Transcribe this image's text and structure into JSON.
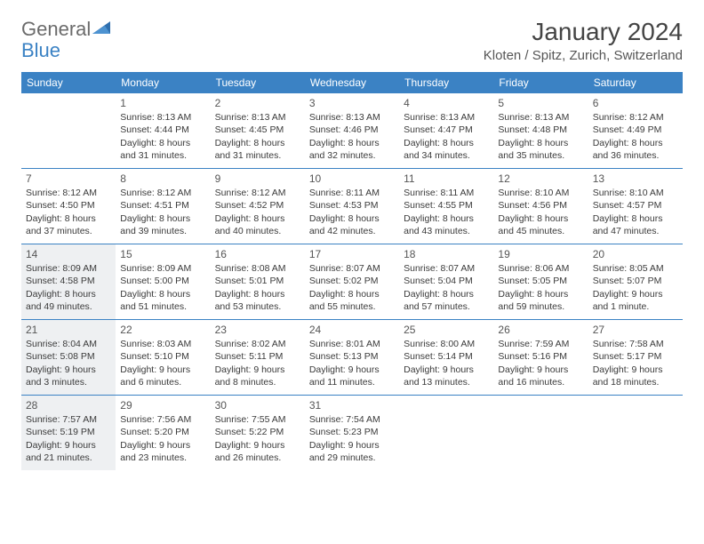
{
  "logo": {
    "general": "General",
    "blue": "Blue"
  },
  "title": "January 2024",
  "location": "Kloten / Spitz, Zurich, Switzerland",
  "colors": {
    "header_bg": "#3b82c4",
    "header_text": "#ffffff",
    "shade_bg": "#eef0f2",
    "divider": "#3b82c4",
    "body_text": "#3a3a3a"
  },
  "dayHeaders": [
    "Sunday",
    "Monday",
    "Tuesday",
    "Wednesday",
    "Thursday",
    "Friday",
    "Saturday"
  ],
  "weeks": [
    [
      {
        "num": "",
        "sunrise": "",
        "sunset": "",
        "daylight": "",
        "shade": false
      },
      {
        "num": "1",
        "sunrise": "Sunrise: 8:13 AM",
        "sunset": "Sunset: 4:44 PM",
        "daylight": "Daylight: 8 hours and 31 minutes.",
        "shade": false
      },
      {
        "num": "2",
        "sunrise": "Sunrise: 8:13 AM",
        "sunset": "Sunset: 4:45 PM",
        "daylight": "Daylight: 8 hours and 31 minutes.",
        "shade": false
      },
      {
        "num": "3",
        "sunrise": "Sunrise: 8:13 AM",
        "sunset": "Sunset: 4:46 PM",
        "daylight": "Daylight: 8 hours and 32 minutes.",
        "shade": false
      },
      {
        "num": "4",
        "sunrise": "Sunrise: 8:13 AM",
        "sunset": "Sunset: 4:47 PM",
        "daylight": "Daylight: 8 hours and 34 minutes.",
        "shade": false
      },
      {
        "num": "5",
        "sunrise": "Sunrise: 8:13 AM",
        "sunset": "Sunset: 4:48 PM",
        "daylight": "Daylight: 8 hours and 35 minutes.",
        "shade": false
      },
      {
        "num": "6",
        "sunrise": "Sunrise: 8:12 AM",
        "sunset": "Sunset: 4:49 PM",
        "daylight": "Daylight: 8 hours and 36 minutes.",
        "shade": false
      }
    ],
    [
      {
        "num": "7",
        "sunrise": "Sunrise: 8:12 AM",
        "sunset": "Sunset: 4:50 PM",
        "daylight": "Daylight: 8 hours and 37 minutes.",
        "shade": false
      },
      {
        "num": "8",
        "sunrise": "Sunrise: 8:12 AM",
        "sunset": "Sunset: 4:51 PM",
        "daylight": "Daylight: 8 hours and 39 minutes.",
        "shade": false
      },
      {
        "num": "9",
        "sunrise": "Sunrise: 8:12 AM",
        "sunset": "Sunset: 4:52 PM",
        "daylight": "Daylight: 8 hours and 40 minutes.",
        "shade": false
      },
      {
        "num": "10",
        "sunrise": "Sunrise: 8:11 AM",
        "sunset": "Sunset: 4:53 PM",
        "daylight": "Daylight: 8 hours and 42 minutes.",
        "shade": false
      },
      {
        "num": "11",
        "sunrise": "Sunrise: 8:11 AM",
        "sunset": "Sunset: 4:55 PM",
        "daylight": "Daylight: 8 hours and 43 minutes.",
        "shade": false
      },
      {
        "num": "12",
        "sunrise": "Sunrise: 8:10 AM",
        "sunset": "Sunset: 4:56 PM",
        "daylight": "Daylight: 8 hours and 45 minutes.",
        "shade": false
      },
      {
        "num": "13",
        "sunrise": "Sunrise: 8:10 AM",
        "sunset": "Sunset: 4:57 PM",
        "daylight": "Daylight: 8 hours and 47 minutes.",
        "shade": false
      }
    ],
    [
      {
        "num": "14",
        "sunrise": "Sunrise: 8:09 AM",
        "sunset": "Sunset: 4:58 PM",
        "daylight": "Daylight: 8 hours and 49 minutes.",
        "shade": true
      },
      {
        "num": "15",
        "sunrise": "Sunrise: 8:09 AM",
        "sunset": "Sunset: 5:00 PM",
        "daylight": "Daylight: 8 hours and 51 minutes.",
        "shade": false
      },
      {
        "num": "16",
        "sunrise": "Sunrise: 8:08 AM",
        "sunset": "Sunset: 5:01 PM",
        "daylight": "Daylight: 8 hours and 53 minutes.",
        "shade": false
      },
      {
        "num": "17",
        "sunrise": "Sunrise: 8:07 AM",
        "sunset": "Sunset: 5:02 PM",
        "daylight": "Daylight: 8 hours and 55 minutes.",
        "shade": false
      },
      {
        "num": "18",
        "sunrise": "Sunrise: 8:07 AM",
        "sunset": "Sunset: 5:04 PM",
        "daylight": "Daylight: 8 hours and 57 minutes.",
        "shade": false
      },
      {
        "num": "19",
        "sunrise": "Sunrise: 8:06 AM",
        "sunset": "Sunset: 5:05 PM",
        "daylight": "Daylight: 8 hours and 59 minutes.",
        "shade": false
      },
      {
        "num": "20",
        "sunrise": "Sunrise: 8:05 AM",
        "sunset": "Sunset: 5:07 PM",
        "daylight": "Daylight: 9 hours and 1 minute.",
        "shade": false
      }
    ],
    [
      {
        "num": "21",
        "sunrise": "Sunrise: 8:04 AM",
        "sunset": "Sunset: 5:08 PM",
        "daylight": "Daylight: 9 hours and 3 minutes.",
        "shade": true
      },
      {
        "num": "22",
        "sunrise": "Sunrise: 8:03 AM",
        "sunset": "Sunset: 5:10 PM",
        "daylight": "Daylight: 9 hours and 6 minutes.",
        "shade": false
      },
      {
        "num": "23",
        "sunrise": "Sunrise: 8:02 AM",
        "sunset": "Sunset: 5:11 PM",
        "daylight": "Daylight: 9 hours and 8 minutes.",
        "shade": false
      },
      {
        "num": "24",
        "sunrise": "Sunrise: 8:01 AM",
        "sunset": "Sunset: 5:13 PM",
        "daylight": "Daylight: 9 hours and 11 minutes.",
        "shade": false
      },
      {
        "num": "25",
        "sunrise": "Sunrise: 8:00 AM",
        "sunset": "Sunset: 5:14 PM",
        "daylight": "Daylight: 9 hours and 13 minutes.",
        "shade": false
      },
      {
        "num": "26",
        "sunrise": "Sunrise: 7:59 AM",
        "sunset": "Sunset: 5:16 PM",
        "daylight": "Daylight: 9 hours and 16 minutes.",
        "shade": false
      },
      {
        "num": "27",
        "sunrise": "Sunrise: 7:58 AM",
        "sunset": "Sunset: 5:17 PM",
        "daylight": "Daylight: 9 hours and 18 minutes.",
        "shade": false
      }
    ],
    [
      {
        "num": "28",
        "sunrise": "Sunrise: 7:57 AM",
        "sunset": "Sunset: 5:19 PM",
        "daylight": "Daylight: 9 hours and 21 minutes.",
        "shade": true
      },
      {
        "num": "29",
        "sunrise": "Sunrise: 7:56 AM",
        "sunset": "Sunset: 5:20 PM",
        "daylight": "Daylight: 9 hours and 23 minutes.",
        "shade": false
      },
      {
        "num": "30",
        "sunrise": "Sunrise: 7:55 AM",
        "sunset": "Sunset: 5:22 PM",
        "daylight": "Daylight: 9 hours and 26 minutes.",
        "shade": false
      },
      {
        "num": "31",
        "sunrise": "Sunrise: 7:54 AM",
        "sunset": "Sunset: 5:23 PM",
        "daylight": "Daylight: 9 hours and 29 minutes.",
        "shade": false
      },
      {
        "num": "",
        "sunrise": "",
        "sunset": "",
        "daylight": "",
        "shade": false
      },
      {
        "num": "",
        "sunrise": "",
        "sunset": "",
        "daylight": "",
        "shade": false
      },
      {
        "num": "",
        "sunrise": "",
        "sunset": "",
        "daylight": "",
        "shade": false
      }
    ]
  ]
}
